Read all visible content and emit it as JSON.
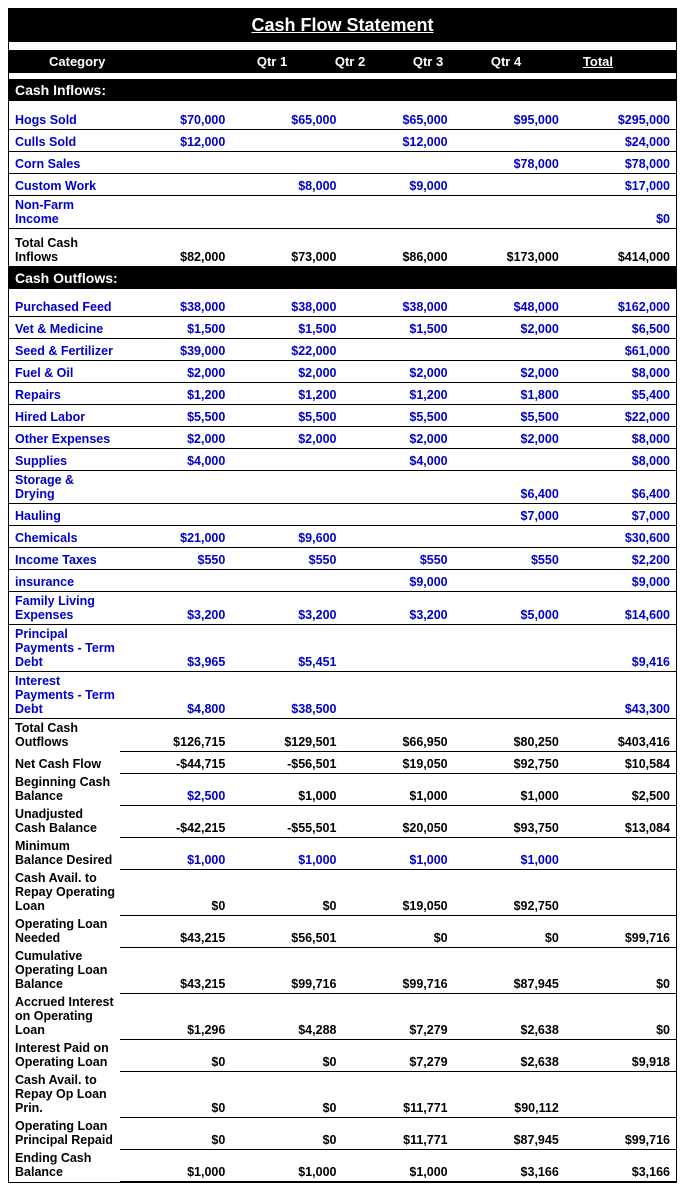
{
  "title": "Cash Flow Statement",
  "headers": {
    "category": "Category",
    "q1": "Qtr 1",
    "q2": "Qtr 2",
    "q3": "Qtr 3",
    "q4": "Qtr 4",
    "total": "Total"
  },
  "sections": {
    "inflows": {
      "title": "Cash Inflows:",
      "rows": [
        {
          "label": "Hogs Sold",
          "link": true,
          "v": [
            "$70,000",
            "$65,000",
            "$65,000",
            "$95,000",
            "$295,000"
          ]
        },
        {
          "label": "Culls Sold",
          "link": true,
          "v": [
            "$12,000",
            "",
            "$12,000",
            "",
            "$24,000"
          ]
        },
        {
          "label": "Corn Sales",
          "link": true,
          "v": [
            "",
            "",
            "",
            "$78,000",
            "$78,000"
          ]
        },
        {
          "label": "Custom Work",
          "link": true,
          "v": [
            "",
            "$8,000",
            "$9,000",
            "",
            "$17,000"
          ]
        },
        {
          "label": "Non-Farm Income",
          "link": true,
          "v": [
            "",
            "",
            "",
            "",
            "$0"
          ]
        }
      ],
      "total": {
        "label": "Total Cash Inflows",
        "v": [
          "$82,000",
          "$73,000",
          "$86,000",
          "$173,000",
          "$414,000"
        ]
      }
    },
    "outflows": {
      "title": "Cash Outflows:",
      "rows": [
        {
          "label": "Purchased Feed",
          "link": true,
          "v": [
            "$38,000",
            "$38,000",
            "$38,000",
            "$48,000",
            "$162,000"
          ]
        },
        {
          "label": "Vet & Medicine",
          "link": true,
          "v": [
            "$1,500",
            "$1,500",
            "$1,500",
            "$2,000",
            "$6,500"
          ]
        },
        {
          "label": "Seed & Fertilizer",
          "link": true,
          "v": [
            "$39,000",
            "$22,000",
            "",
            "",
            "$61,000"
          ]
        },
        {
          "label": "Fuel & Oil",
          "link": true,
          "v": [
            "$2,000",
            "$2,000",
            "$2,000",
            "$2,000",
            "$8,000"
          ]
        },
        {
          "label": "Repairs",
          "link": true,
          "v": [
            "$1,200",
            "$1,200",
            "$1,200",
            "$1,800",
            "$5,400"
          ]
        },
        {
          "label": "Hired Labor",
          "link": true,
          "v": [
            "$5,500",
            "$5,500",
            "$5,500",
            "$5,500",
            "$22,000"
          ]
        },
        {
          "label": "Other Expenses",
          "link": true,
          "v": [
            "$2,000",
            "$2,000",
            "$2,000",
            "$2,000",
            "$8,000"
          ]
        },
        {
          "label": "Supplies",
          "link": true,
          "v": [
            "$4,000",
            "",
            "$4,000",
            "",
            "$8,000"
          ]
        },
        {
          "label": "Storage & Drying",
          "link": true,
          "v": [
            "",
            "",
            "",
            "$6,400",
            "$6,400"
          ]
        },
        {
          "label": "Hauling",
          "link": true,
          "v": [
            "",
            "",
            "",
            "$7,000",
            "$7,000"
          ]
        },
        {
          "label": "Chemicals",
          "link": true,
          "v": [
            "$21,000",
            "$9,600",
            "",
            "",
            "$30,600"
          ]
        },
        {
          "label": "Income Taxes",
          "link": true,
          "v": [
            "$550",
            "$550",
            "$550",
            "$550",
            "$2,200"
          ]
        },
        {
          "label": "insurance",
          "link": true,
          "v": [
            "",
            "",
            "$9,000",
            "",
            "$9,000"
          ]
        },
        {
          "label": "Family Living Expenses",
          "link": true,
          "v": [
            "$3,200",
            "$3,200",
            "$3,200",
            "$5,000",
            "$14,600"
          ]
        },
        {
          "label": "Principal Payments - Term Debt",
          "link": true,
          "v": [
            "$3,965",
            "$5,451",
            "",
            "",
            "$9,416"
          ]
        },
        {
          "label": "Interest Payments - Term Debt",
          "link": true,
          "v": [
            "$4,800",
            "$38,500",
            "",
            "",
            "$43,300"
          ]
        }
      ],
      "summary": [
        {
          "label": "Total Cash Outflows",
          "link": false,
          "v": [
            "$126,715",
            "$129,501",
            "$66,950",
            "$80,250",
            "$403,416"
          ]
        },
        {
          "label": "Net Cash Flow",
          "link": false,
          "v": [
            "-$44,715",
            "-$56,501",
            "$19,050",
            "$92,750",
            "$10,584"
          ]
        },
        {
          "label": "Beginning Cash Balance",
          "link": false,
          "v": [
            "$2,500",
            "$1,000",
            "$1,000",
            "$1,000",
            "$2,500"
          ],
          "blueVals": [
            true,
            false,
            false,
            false,
            false
          ]
        },
        {
          "label": "Unadjusted Cash Balance",
          "link": false,
          "v": [
            "-$42,215",
            "-$55,501",
            "$20,050",
            "$93,750",
            "$13,084"
          ]
        },
        {
          "label": "Minimum Balance Desired",
          "link": false,
          "v": [
            "$1,000",
            "$1,000",
            "$1,000",
            "$1,000",
            ""
          ],
          "blueVals": [
            true,
            true,
            true,
            true,
            false
          ]
        },
        {
          "label": "Cash Avail. to Repay Operating Loan",
          "link": false,
          "tall": true,
          "v": [
            "$0",
            "$0",
            "$19,050",
            "$92,750",
            ""
          ]
        },
        {
          "label": "Operating Loan Needed",
          "link": false,
          "v": [
            "$43,215",
            "$56,501",
            "$0",
            "$0",
            "$99,716"
          ]
        },
        {
          "label": "Cumulative Operating Loan Balance",
          "link": false,
          "v": [
            "$43,215",
            "$99,716",
            "$99,716",
            "$87,945",
            "$0"
          ]
        },
        {
          "label": "Accrued Interest on Operating Loan",
          "link": false,
          "v": [
            "$1,296",
            "$4,288",
            "$7,279",
            "$2,638",
            "$0"
          ]
        },
        {
          "label": "Interest Paid on Operating Loan",
          "link": false,
          "v": [
            "$0",
            "$0",
            "$7,279",
            "$2,638",
            "$9,918"
          ]
        },
        {
          "label": "Cash Avail. to Repay Op Loan Prin.",
          "link": false,
          "v": [
            "$0",
            "$0",
            "$11,771",
            "$90,112",
            ""
          ]
        },
        {
          "label": "Operating Loan Principal Repaid",
          "link": false,
          "v": [
            "$0",
            "$0",
            "$11,771",
            "$87,945",
            "$99,716"
          ]
        },
        {
          "label": "Ending Cash Balance",
          "link": false,
          "v": [
            "$1,000",
            "$1,000",
            "$1,000",
            "$3,166",
            "$3,166"
          ]
        }
      ]
    }
  },
  "style": {
    "link_color": "#0000cc",
    "text_color": "#000000",
    "header_bg": "#000000",
    "header_fg": "#ffffff",
    "font_family": "Arial",
    "title_fontsize": 18,
    "header_fontsize": 13,
    "cell_fontsize": 12.5,
    "col_widths": {
      "label": 224,
      "qtr": 78,
      "total": 78
    }
  }
}
